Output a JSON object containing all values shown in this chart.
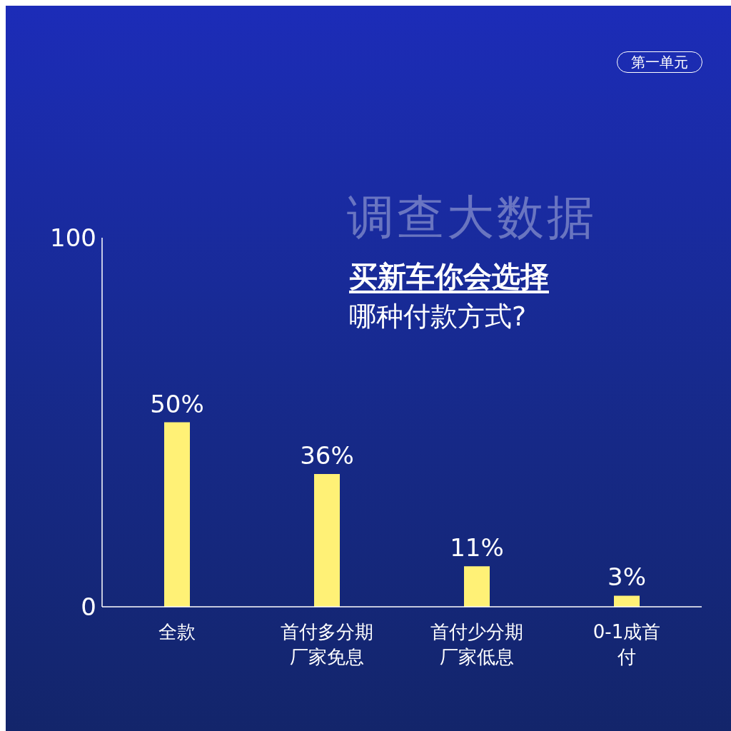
{
  "chart_data": {
    "type": "bar",
    "title": "调查大数据",
    "subtitle": "买新车你会选择",
    "annotations": [
      "哪种付款方式?",
      "第一单元"
    ],
    "categories": [
      "全款",
      "首付多分期厂家免息",
      "首付少分期厂家低息",
      "0-1成首付"
    ],
    "values": [
      50,
      36,
      11,
      3
    ],
    "color": "#fff176",
    "value_labels": [
      "50%",
      "36%",
      "11%",
      "3%"
    ],
    "ylim": [
      0,
      100
    ],
    "yticks": [
      0,
      100
    ],
    "grid": false
  }
}
